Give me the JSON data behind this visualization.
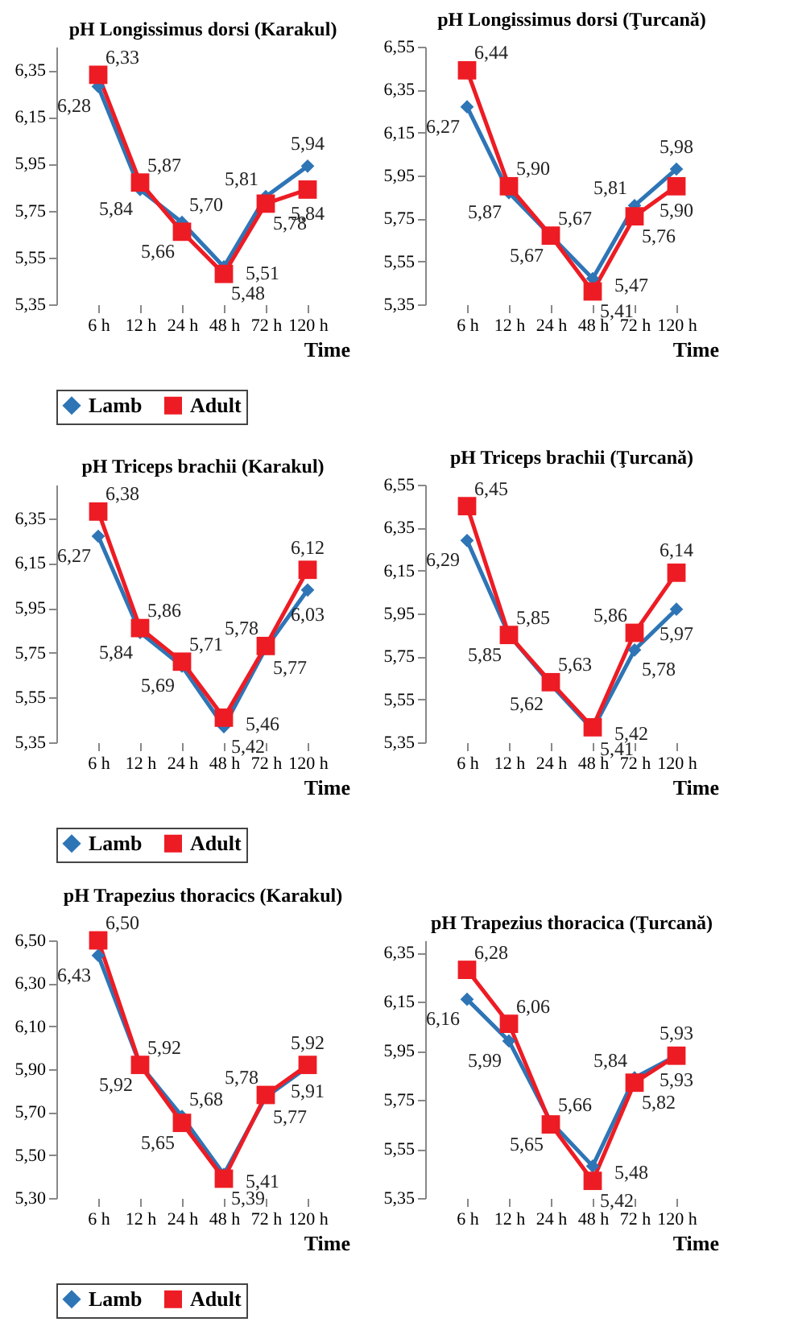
{
  "chart_data": [
    {
      "type": "line",
      "title": "pH Longissimus dorsi (Karakul)",
      "xlabel": "Time",
      "categories": [
        "6 h",
        "12 h",
        "24 h",
        "48 h",
        "72 h",
        "120 h"
      ],
      "ylim": [
        5.35,
        6.45
      ],
      "yticks": [
        {
          "value": 5.35,
          "label": "5,35"
        },
        {
          "value": 5.55,
          "label": "5,55"
        },
        {
          "value": 5.75,
          "label": "5,75"
        },
        {
          "value": 5.95,
          "label": "5,95"
        },
        {
          "value": 6.15,
          "label": "6,15"
        },
        {
          "value": 6.35,
          "label": "6,35"
        }
      ],
      "legend": "bottom",
      "series": [
        {
          "name": "Lamb",
          "color": "#2e75b6",
          "marker": "diamond",
          "values": [
            6.28,
            5.84,
            5.7,
            5.51,
            5.81,
            5.94
          ],
          "value_labels": [
            "6,28",
            "5,84",
            "5,70",
            "5,51",
            "5,81",
            "5,94"
          ]
        },
        {
          "name": "Adult",
          "color": "#ed1c24",
          "marker": "square",
          "values": [
            6.33,
            5.87,
            5.66,
            5.48,
            5.78,
            5.84
          ],
          "value_labels": [
            "6,33",
            "5,87",
            "5,66",
            "5,48",
            "5,78",
            "5,84"
          ]
        }
      ]
    },
    {
      "type": "line",
      "title": "pH Longissimus dorsi (Ţurcană)",
      "xlabel": "Time",
      "categories": [
        "6 h",
        "12 h",
        "24 h",
        "48 h",
        "72 h",
        "120 h"
      ],
      "ylim": [
        5.35,
        6.55
      ],
      "yticks": [
        {
          "value": 5.35,
          "label": "5,35"
        },
        {
          "value": 5.55,
          "label": "5,55"
        },
        {
          "value": 5.75,
          "label": "5,75"
        },
        {
          "value": 5.95,
          "label": "5,95"
        },
        {
          "value": 6.15,
          "label": "6,15"
        },
        {
          "value": 6.35,
          "label": "6,35"
        },
        {
          "value": 6.55,
          "label": "6,55"
        }
      ],
      "legend": "bottom",
      "series": [
        {
          "name": "Lamb",
          "color": "#2e75b6",
          "marker": "diamond",
          "values": [
            6.27,
            5.87,
            5.67,
            5.47,
            5.81,
            5.98
          ],
          "value_labels": [
            "6,27",
            "5,87",
            "5,67",
            "5,47",
            "5,81",
            "5,98"
          ]
        },
        {
          "name": "Adult",
          "color": "#ed1c24",
          "marker": "square",
          "values": [
            6.44,
            5.9,
            5.67,
            5.41,
            5.76,
            5.9
          ],
          "value_labels": [
            "6,44",
            "5,90",
            "5,67",
            "5,41",
            "5,76",
            "5,90"
          ]
        }
      ]
    },
    {
      "type": "line",
      "title": "pH Triceps brachii (Karakul)",
      "xlabel": "Time",
      "categories": [
        "6 h",
        "12 h",
        "24 h",
        "48 h",
        "72 h",
        "120 h"
      ],
      "ylim": [
        5.35,
        6.5
      ],
      "yticks": [
        {
          "value": 5.35,
          "label": "5,35"
        },
        {
          "value": 5.55,
          "label": "5,55"
        },
        {
          "value": 5.75,
          "label": "5,75"
        },
        {
          "value": 5.95,
          "label": "5,95"
        },
        {
          "value": 6.15,
          "label": "6,15"
        },
        {
          "value": 6.35,
          "label": "6,35"
        }
      ],
      "legend": "bottom",
      "series": [
        {
          "name": "Lamb",
          "color": "#2e75b6",
          "marker": "diamond",
          "values": [
            6.27,
            5.84,
            5.69,
            5.42,
            5.77,
            6.03
          ],
          "value_labels": [
            "6,27",
            "5,84",
            "5,69",
            "5,42",
            "5,77",
            "6,03"
          ]
        },
        {
          "name": "Adult",
          "color": "#ed1c24",
          "marker": "square",
          "values": [
            6.38,
            5.86,
            5.71,
            5.46,
            5.78,
            6.12
          ],
          "value_labels": [
            "6,38",
            "5,86",
            "5,71",
            "5,46",
            "5,78",
            "6,12"
          ]
        }
      ]
    },
    {
      "type": "line",
      "title": "pH Triceps brachii (Ţurcană)",
      "xlabel": "Time",
      "categories": [
        "6 h",
        "12 h",
        "24 h",
        "48 h",
        "72 h",
        "120 h"
      ],
      "ylim": [
        5.35,
        6.55
      ],
      "yticks": [
        {
          "value": 5.35,
          "label": "5,35"
        },
        {
          "value": 5.55,
          "label": "5,55"
        },
        {
          "value": 5.75,
          "label": "5,75"
        },
        {
          "value": 5.95,
          "label": "5,95"
        },
        {
          "value": 6.15,
          "label": "6,15"
        },
        {
          "value": 6.35,
          "label": "6,35"
        },
        {
          "value": 6.55,
          "label": "6,55"
        }
      ],
      "legend": "bottom",
      "series": [
        {
          "name": "Lamb",
          "color": "#2e75b6",
          "marker": "diamond",
          "values": [
            6.29,
            5.85,
            5.62,
            5.41,
            5.78,
            5.97
          ],
          "value_labels": [
            "6,29",
            "5,85",
            "5,62",
            "5,41",
            "5,78",
            "5,97"
          ]
        },
        {
          "name": "Adult",
          "color": "#ed1c24",
          "marker": "square",
          "values": [
            6.45,
            5.85,
            5.63,
            5.42,
            5.86,
            6.14
          ],
          "value_labels": [
            "6,45",
            "5,85",
            "5,63",
            "5,42",
            "5,86",
            "6,14"
          ]
        }
      ]
    },
    {
      "type": "line",
      "title": "pH Trapezius thoracics (Karakul)",
      "xlabel": "Time",
      "categories": [
        "6 h",
        "12 h",
        "24 h",
        "48 h",
        "72 h",
        "120 h"
      ],
      "ylim": [
        5.3,
        6.5
      ],
      "yticks": [
        {
          "value": 5.3,
          "label": "5,30"
        },
        {
          "value": 5.5,
          "label": "5,50"
        },
        {
          "value": 5.7,
          "label": "5,70"
        },
        {
          "value": 5.9,
          "label": "5,90"
        },
        {
          "value": 6.1,
          "label": "6,10"
        },
        {
          "value": 6.3,
          "label": "6,30"
        },
        {
          "value": 6.5,
          "label": "6,50"
        }
      ],
      "legend": "bottom",
      "series": [
        {
          "name": "Lamb",
          "color": "#2e75b6",
          "marker": "diamond",
          "values": [
            6.43,
            5.92,
            5.68,
            5.41,
            5.77,
            5.91
          ],
          "value_labels": [
            "6,43",
            "5,92",
            "5,68",
            "5,41",
            "5,77",
            "5,91"
          ]
        },
        {
          "name": "Adult",
          "color": "#ed1c24",
          "marker": "square",
          "values": [
            6.5,
            5.92,
            5.65,
            5.39,
            5.78,
            5.92
          ],
          "value_labels": [
            "6,50",
            "5,92",
            "5,65",
            "5,39",
            "5,78",
            "5,92"
          ]
        }
      ]
    },
    {
      "type": "line",
      "title": "pH Trapezius thoracica (Ţurcană)",
      "xlabel": "Time",
      "categories": [
        "6 h",
        "12 h",
        "24 h",
        "48 h",
        "72 h",
        "120 h"
      ],
      "ylim": [
        5.35,
        6.4
      ],
      "yticks": [
        {
          "value": 5.35,
          "label": "5,35"
        },
        {
          "value": 5.55,
          "label": "5,55"
        },
        {
          "value": 5.75,
          "label": "5,75"
        },
        {
          "value": 5.95,
          "label": "5,95"
        },
        {
          "value": 6.15,
          "label": "6,15"
        },
        {
          "value": 6.35,
          "label": "6,35"
        }
      ],
      "legend": "bottom",
      "series": [
        {
          "name": "Lamb",
          "color": "#2e75b6",
          "marker": "diamond",
          "values": [
            6.16,
            5.99,
            5.66,
            5.48,
            5.84,
            5.93
          ],
          "value_labels": [
            "6,16",
            "5,99",
            "5,66",
            "5,48",
            "5,84",
            "5,93"
          ]
        },
        {
          "name": "Adult",
          "color": "#ed1c24",
          "marker": "square",
          "values": [
            6.28,
            6.06,
            5.65,
            5.42,
            5.82,
            5.93
          ],
          "value_labels": [
            "6,28",
            "6,06",
            "5,65",
            "5,42",
            "5,82",
            "5,93"
          ]
        }
      ]
    }
  ]
}
